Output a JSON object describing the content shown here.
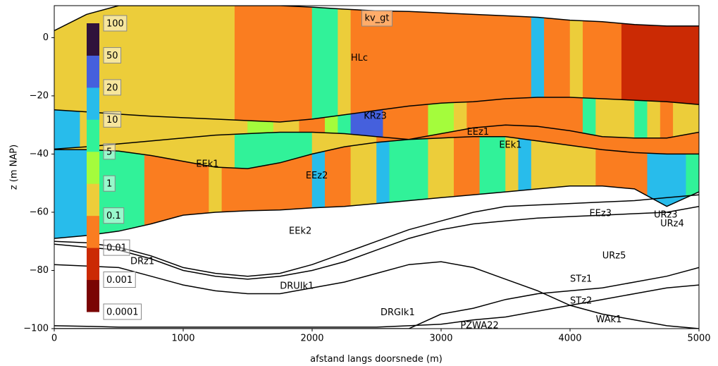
{
  "chart_data": {
    "type": "section",
    "title": "kv_gt",
    "xlabel": "afstand langs doorsnede (m)",
    "ylabel": "z (m NAP)",
    "xlim": [
      0,
      5000
    ],
    "ylim": [
      -100,
      11
    ],
    "xticks": [
      0,
      1000,
      2000,
      3000,
      4000,
      5000
    ],
    "yticks": [
      0,
      {
        "value": -20,
        "label": "−20"
      },
      {
        "value": -40,
        "label": "−40"
      },
      {
        "value": -60,
        "label": "−60"
      },
      {
        "value": -80,
        "label": "−80"
      },
      {
        "value": -100,
        "label": "−100"
      }
    ],
    "x": [
      0,
      250,
      500,
      750,
      1000,
      1250,
      1500,
      1750,
      2000,
      2250,
      2500,
      2750,
      3000,
      3250,
      3500,
      3750,
      4000,
      4250,
      4500,
      4750,
      5000
    ],
    "surfaces": [
      {
        "y": [
          2.4,
          8,
          11,
          11,
          11,
          11,
          11,
          11,
          10.5,
          9.8,
          9.2,
          9,
          8.5,
          8,
          7.5,
          7,
          6,
          5.5,
          4.5,
          4,
          4
        ]
      },
      {
        "y": [
          -24.8,
          -25.5,
          -26.3,
          -27,
          -27.5,
          -28,
          -28.5,
          -29,
          -28,
          -26.5,
          -25,
          -23.5,
          -22.5,
          -22,
          -21,
          -20.5,
          -20.5,
          -21,
          -21.5,
          -22,
          -23
        ]
      },
      {
        "y": [
          -38.3,
          -37.5,
          -36.5,
          -35.5,
          -34.5,
          -33.5,
          -33,
          -32.5,
          -32.5,
          -33,
          -34,
          -35,
          -33,
          -31,
          -30,
          -30.5,
          -32,
          -34,
          -34.5,
          -34.5,
          -32.5
        ]
      },
      {
        "y": [
          -38.5,
          -38.5,
          -39,
          -40.5,
          -42.5,
          -44.5,
          -45,
          -43,
          -40,
          -37.5,
          -36,
          -35,
          -34.5,
          -34,
          -34,
          -35.5,
          -37,
          -38.5,
          -39.5,
          -40,
          -40
        ]
      },
      {
        "y": [
          -69,
          -68,
          -66.5,
          -64,
          -61,
          -60,
          -59.5,
          -59.2,
          -58.5,
          -58,
          -57,
          -56,
          -55,
          -54,
          -53,
          -52,
          -51,
          -51,
          -52,
          -58,
          -53
        ]
      }
    ],
    "zones": [
      {
        "cells": [
          [
            0,
            1400,
            0.5
          ],
          [
            1400,
            2000,
            0.05
          ],
          [
            2000,
            2200,
            7
          ],
          [
            2200,
            2300,
            0.5
          ],
          [
            2300,
            3700,
            0.05
          ],
          [
            3700,
            3800,
            15
          ],
          [
            3800,
            4000,
            0.05
          ],
          [
            4000,
            4100,
            0.5
          ],
          [
            4100,
            4400,
            0.05
          ],
          [
            4400,
            5000,
            0.005
          ]
        ]
      },
      {
        "cells": [
          [
            0,
            200,
            15
          ],
          [
            200,
            1500,
            0.5
          ],
          [
            1500,
            1700,
            2
          ],
          [
            1700,
            1900,
            0.5
          ],
          [
            1900,
            2100,
            0.05
          ],
          [
            2100,
            2200,
            2
          ],
          [
            2200,
            2300,
            7
          ],
          [
            2300,
            2550,
            30
          ],
          [
            2550,
            2900,
            0.05
          ],
          [
            2900,
            3100,
            2
          ],
          [
            3100,
            3200,
            0.5
          ],
          [
            3200,
            4100,
            0.05
          ],
          [
            4100,
            4200,
            7
          ],
          [
            4200,
            4500,
            0.5
          ],
          [
            4500,
            4600,
            7
          ],
          [
            4600,
            4700,
            0.5
          ],
          [
            4700,
            4800,
            0.05
          ],
          [
            4800,
            5000,
            0.5
          ]
        ]
      },
      {
        "cells": [
          [
            0,
            1400,
            0.5
          ],
          [
            1400,
            2000,
            7
          ],
          [
            2000,
            2500,
            0.5
          ],
          [
            2500,
            5000,
            0.05
          ]
        ]
      },
      {
        "cells": [
          [
            0,
            300,
            15
          ],
          [
            300,
            700,
            7
          ],
          [
            700,
            1200,
            0.05
          ],
          [
            1200,
            1300,
            0.5
          ],
          [
            1300,
            2000,
            0.05
          ],
          [
            2000,
            2100,
            15
          ],
          [
            2100,
            2300,
            0.05
          ],
          [
            2300,
            2500,
            0.5
          ],
          [
            2500,
            2600,
            15
          ],
          [
            2600,
            2900,
            7
          ],
          [
            2900,
            3100,
            0.5
          ],
          [
            3100,
            3300,
            0.05
          ],
          [
            3300,
            3500,
            7
          ],
          [
            3500,
            3600,
            0.5
          ],
          [
            3600,
            3700,
            15
          ],
          [
            3700,
            4200,
            0.5
          ],
          [
            4200,
            4600,
            0.05
          ],
          [
            4600,
            4900,
            15
          ],
          [
            4900,
            5000,
            7
          ]
        ]
      }
    ],
    "lines": [
      {
        "y": [
          -70,
          -70.5,
          -72,
          -75,
          -79,
          -81,
          -82,
          -81,
          -78,
          -74,
          -70,
          -66,
          -63,
          -60,
          -58,
          -57.5,
          -57,
          -56.5,
          -56,
          -55,
          -54
        ]
      },
      {
        "y": [
          -71,
          -72,
          -73,
          -76,
          -80,
          -82,
          -83,
          -82,
          -80,
          -77,
          -73,
          -69,
          -66,
          -64,
          -63,
          -62,
          -61.5,
          -61,
          -60.5,
          -60,
          -58
        ]
      },
      {
        "y": [
          -78,
          -78.5,
          -79,
          -82,
          -85,
          -87,
          -88,
          -88,
          -86,
          -84,
          -81,
          -78,
          -77,
          -79,
          -83,
          -87,
          -92,
          -95,
          -97,
          -99,
          -100
        ]
      },
      {
        "y": [
          -99,
          -99.2,
          -99.5,
          -99.5,
          -99.5,
          -99.5,
          -99.5,
          -99.5,
          -99.5,
          -99.5,
          -99.5,
          -99,
          -98.5,
          -97,
          -96,
          -94,
          -92,
          -90,
          -88,
          -86,
          -85
        ]
      },
      {
        "y": [
          -100,
          -100,
          -100,
          -100,
          -100,
          -100,
          -100,
          -100,
          -100,
          -100,
          -100,
          -100,
          -95,
          -93,
          -90,
          -88,
          -87,
          -86,
          -84,
          -82,
          -79
        ]
      }
    ],
    "annotations": [
      "HLc",
      "KRz3",
      "EEz1",
      "EEk1",
      "EEk1",
      "EEz2",
      "EEz3",
      "URz3",
      "URz4",
      "EEk2",
      "URz5",
      "DRz1",
      "STz1",
      "DRUIk1",
      "STz2",
      "DRGIk1",
      "WAk1",
      "PZWA22"
    ],
    "colorbar": {
      "bounds": [
        0.0001,
        0.001,
        0.01,
        0.1,
        1,
        5,
        10,
        20,
        50,
        100
      ],
      "colors": [
        "#7a0403",
        "#cb2a04",
        "#fa7d20",
        "#eccd3a",
        "#a4fc3c",
        "#31f299",
        "#28bceb",
        "#4560dd",
        "#30123b"
      ]
    }
  }
}
